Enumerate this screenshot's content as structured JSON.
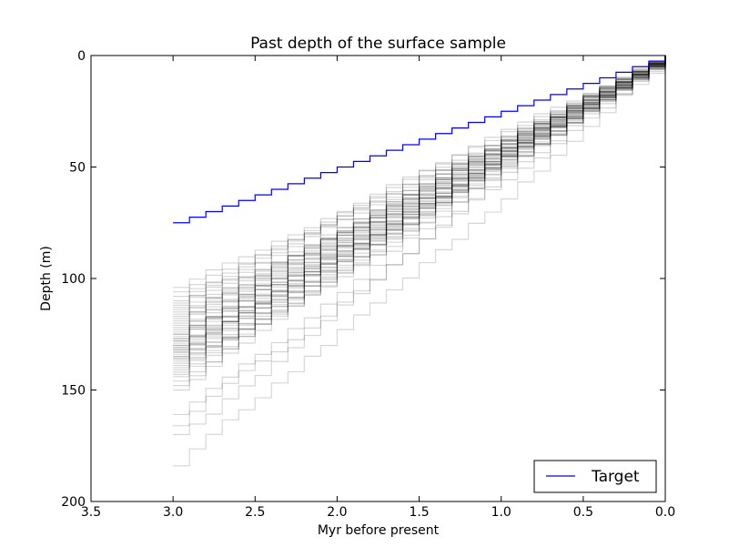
{
  "chart_data": {
    "type": "line",
    "title": "Past depth of the surface sample",
    "xlabel": "Myr before present",
    "ylabel": "Depth (m)",
    "xlim": [
      3.5,
      0.0
    ],
    "ylim": [
      200,
      0
    ],
    "x_axis_inverted": true,
    "y_axis_inverted": true,
    "xticks": [
      3.5,
      3.0,
      2.5,
      2.0,
      1.5,
      1.0,
      0.5,
      0.0
    ],
    "xtick_labels": [
      "3.5",
      "3.0",
      "2.5",
      "2.0",
      "1.5",
      "1.0",
      "0.5",
      "0.0"
    ],
    "yticks": [
      0,
      50,
      100,
      150,
      200
    ],
    "ytick_labels": [
      "0",
      "50",
      "100",
      "150",
      "200"
    ],
    "grid": false,
    "legend": {
      "position": "lower-right",
      "entries": [
        "Target"
      ]
    },
    "step_interval_myr": 0.1,
    "series": [
      {
        "name": "Target",
        "color": "#0000ff",
        "style": "step",
        "depth_at_3myr": 75
      }
    ],
    "ensemble": {
      "color": "#000000",
      "opacity": 0.16,
      "style": "step",
      "depth_at_3myr": [
        104,
        106,
        108,
        110,
        111,
        112,
        113,
        114,
        115,
        116,
        117,
        118,
        119,
        120,
        121,
        122,
        123,
        124,
        125,
        125,
        126,
        127,
        127,
        128,
        128,
        129,
        130,
        130,
        131,
        131,
        132,
        132,
        133,
        133,
        134,
        135,
        135,
        136,
        136,
        137,
        138,
        139,
        140,
        141,
        142,
        143,
        144,
        146,
        148,
        150
      ]
    },
    "outliers": {
      "color": "#000000",
      "opacity": 0.16,
      "style": "step",
      "depth_at_3myr": [
        161,
        166,
        170,
        184
      ]
    }
  }
}
